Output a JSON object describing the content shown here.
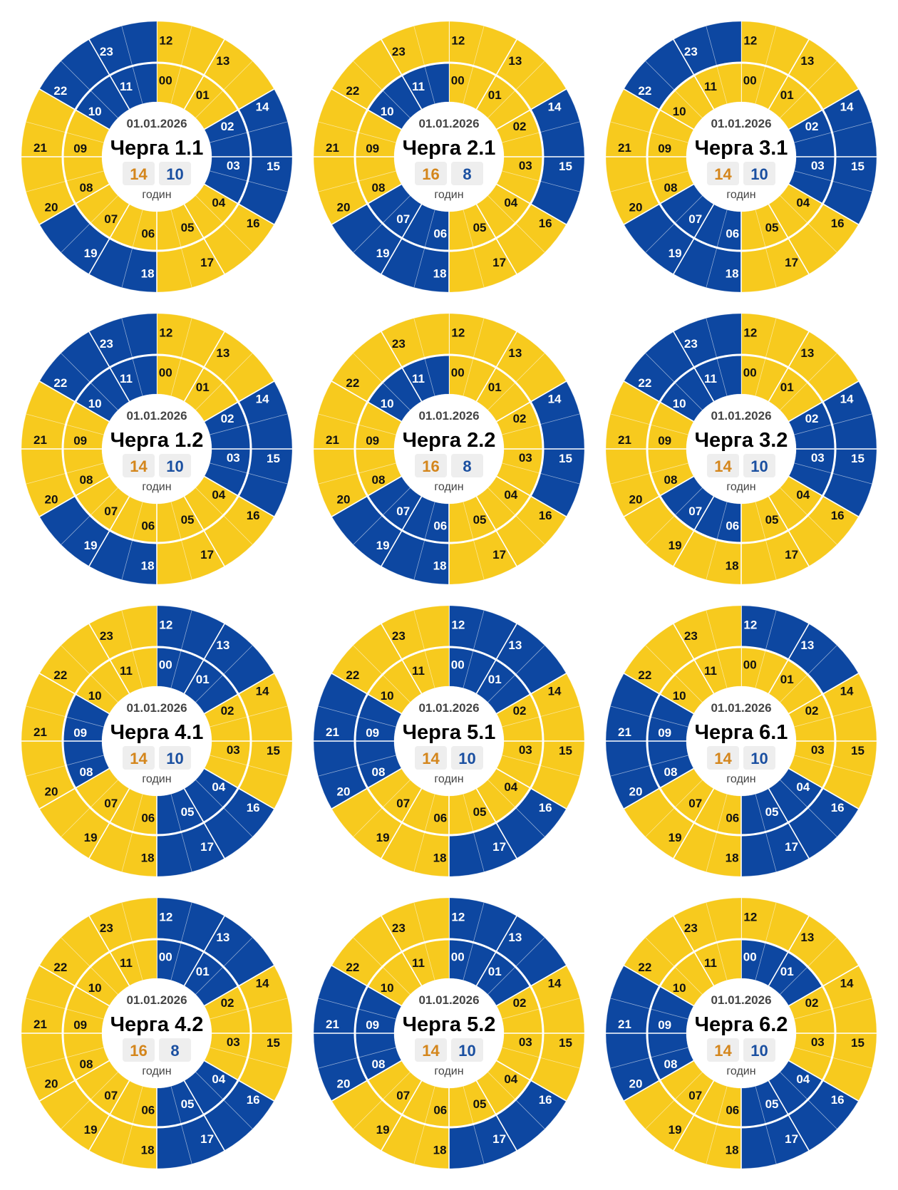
{
  "colors": {
    "power_on": "#F7CA1E",
    "power_off": "#0D47A1",
    "on_count_text": "#D4861C",
    "off_count_text": "#1A4FA0",
    "count_box": "#EEEEEE"
  },
  "hour_labels": [
    "00",
    "01",
    "02",
    "03",
    "04",
    "05",
    "06",
    "07",
    "08",
    "09",
    "10",
    "11",
    "12",
    "13",
    "14",
    "15",
    "16",
    "17",
    "18",
    "19",
    "20",
    "21",
    "22",
    "23"
  ],
  "chart_data": [
    {
      "type": "pie",
      "date": "01.01.2026",
      "title": "Черга 1.1",
      "on_hours": "14",
      "off_hours": "10",
      "unit": "годин",
      "outage_hours": [
        2,
        3,
        10,
        11,
        14,
        15,
        18,
        19,
        22,
        23
      ]
    },
    {
      "type": "pie",
      "date": "01.01.2026",
      "title": "Черга 2.1",
      "on_hours": "16",
      "off_hours": "8",
      "unit": "годин",
      "outage_hours": [
        6,
        7,
        10,
        11,
        14,
        15,
        18,
        19
      ]
    },
    {
      "type": "pie",
      "date": "01.01.2026",
      "title": "Черга 3.1",
      "on_hours": "14",
      "off_hours": "10",
      "unit": "годин",
      "outage_hours": [
        2,
        3,
        6,
        7,
        14,
        15,
        18,
        19,
        22,
        23
      ]
    },
    {
      "type": "pie",
      "date": "01.01.2026",
      "title": "Черга 1.2",
      "on_hours": "14",
      "off_hours": "10",
      "unit": "годин",
      "outage_hours": [
        2,
        3,
        10,
        11,
        14,
        15,
        18,
        19,
        22,
        23
      ]
    },
    {
      "type": "pie",
      "date": "01.01.2026",
      "title": "Черга 2.2",
      "on_hours": "16",
      "off_hours": "8",
      "unit": "годин",
      "outage_hours": [
        6,
        7,
        10,
        11,
        14,
        15,
        18,
        19
      ]
    },
    {
      "type": "pie",
      "date": "01.01.2026",
      "title": "Черга 3.2",
      "on_hours": "14",
      "off_hours": "10",
      "unit": "годин",
      "outage_hours": [
        2,
        3,
        6,
        7,
        10,
        11,
        14,
        15,
        22,
        23
      ]
    },
    {
      "type": "pie",
      "date": "01.01.2026",
      "title": "Черга 4.1",
      "on_hours": "14",
      "off_hours": "10",
      "unit": "годин",
      "outage_hours": [
        0,
        1,
        4,
        5,
        8,
        9,
        12,
        13,
        16,
        17
      ]
    },
    {
      "type": "pie",
      "date": "01.01.2026",
      "title": "Черга 5.1",
      "on_hours": "14",
      "off_hours": "10",
      "unit": "годин",
      "outage_hours": [
        0,
        1,
        8,
        9,
        12,
        13,
        16,
        17,
        20,
        21
      ]
    },
    {
      "type": "pie",
      "date": "01.01.2026",
      "title": "Черга 6.1",
      "on_hours": "14",
      "off_hours": "10",
      "unit": "годин",
      "outage_hours": [
        4,
        5,
        8,
        9,
        12,
        13,
        16,
        17,
        20,
        21
      ]
    },
    {
      "type": "pie",
      "date": "01.01.2026",
      "title": "Черга 4.2",
      "on_hours": "16",
      "off_hours": "8",
      "unit": "годин",
      "outage_hours": [
        0,
        1,
        4,
        5,
        12,
        13,
        16,
        17
      ]
    },
    {
      "type": "pie",
      "date": "01.01.2026",
      "title": "Черга 5.2",
      "on_hours": "14",
      "off_hours": "10",
      "unit": "годин",
      "outage_hours": [
        0,
        1,
        8,
        9,
        12,
        13,
        16,
        17,
        20,
        21
      ]
    },
    {
      "type": "pie",
      "date": "01.01.2026",
      "title": "Черга 6.2",
      "on_hours": "14",
      "off_hours": "10",
      "unit": "годин",
      "outage_hours": [
        0,
        1,
        4,
        5,
        8,
        9,
        16,
        17,
        20,
        21
      ]
    }
  ]
}
